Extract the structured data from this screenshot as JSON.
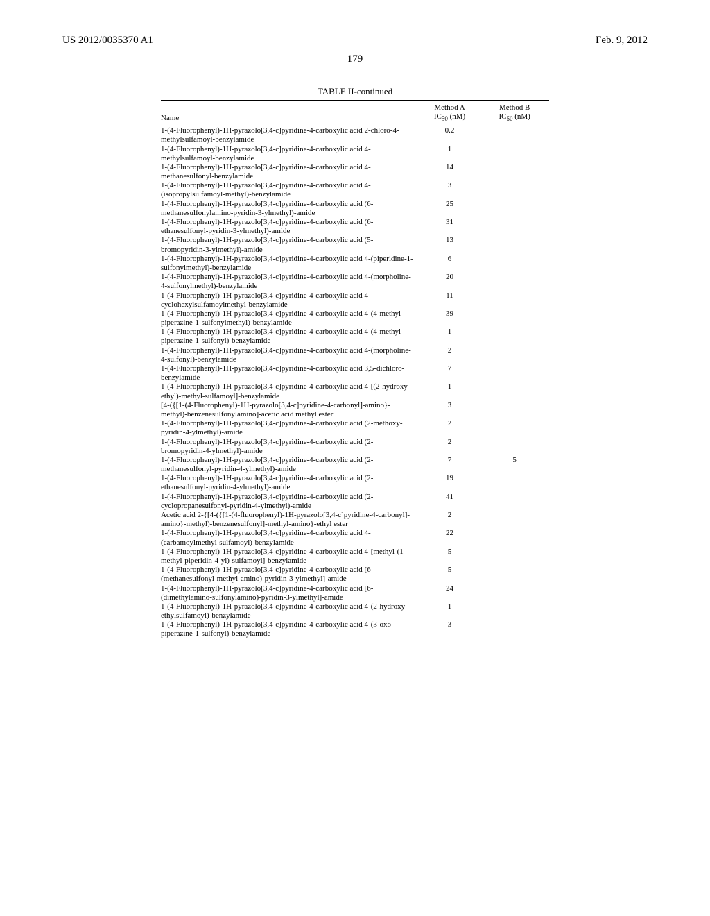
{
  "header": {
    "left": "US 2012/0035370 A1",
    "right": "Feb. 9, 2012"
  },
  "page_number": "179",
  "table": {
    "caption": "TABLE II-continued",
    "columns": {
      "name": "Name",
      "methodA_line1": "Method A",
      "methodA_line2": "IC",
      "methodA_sub": "50",
      "methodA_unit": " (nM)",
      "methodB_line1": "Method B",
      "methodB_line2": "IC",
      "methodB_sub": "50",
      "methodB_unit": " (nM)"
    },
    "rows": [
      {
        "name": "1-(4-Fluorophenyl)-1H-pyrazolo[3,4-c]pyridine-4-carboxylic acid 2-chloro-4-methylsulfamoyl-benzylamide",
        "a": "0.2",
        "b": ""
      },
      {
        "name": "1-(4-Fluorophenyl)-1H-pyrazolo[3,4-c]pyridine-4-carboxylic acid 4-methylsulfamoyl-benzylamide",
        "a": "1",
        "b": ""
      },
      {
        "name": "1-(4-Fluorophenyl)-1H-pyrazolo[3,4-c]pyridine-4-carboxylic acid 4-methanesulfonyl-benzylamide",
        "a": "14",
        "b": ""
      },
      {
        "name": "1-(4-Fluorophenyl)-1H-pyrazolo[3,4-c]pyridine-4-carboxylic acid 4-(isopropylsulfamoyl-methyl)-benzylamide",
        "a": "3",
        "b": ""
      },
      {
        "name": "1-(4-Fluorophenyl)-1H-pyrazolo[3,4-c]pyridine-4-carboxylic acid (6-methanesulfonylamino-pyridin-3-ylmethyl)-amide",
        "a": "25",
        "b": ""
      },
      {
        "name": "1-(4-Fluorophenyl)-1H-pyrazolo[3,4-c]pyridine-4-carboxylic acid (6-ethanesulfonyl-pyridin-3-ylmethyl)-amide",
        "a": "31",
        "b": ""
      },
      {
        "name": "1-(4-Fluorophenyl)-1H-pyrazolo[3,4-c]pyridine-4-carboxylic acid (5-bromopyridin-3-ylmethyl)-amide",
        "a": "13",
        "b": ""
      },
      {
        "name": "1-(4-Fluorophenyl)-1H-pyrazolo[3,4-c]pyridine-4-carboxylic acid 4-(piperidine-1-sulfonylmethyl)-benzylamide",
        "a": "6",
        "b": ""
      },
      {
        "name": "1-(4-Fluorophenyl)-1H-pyrazolo[3,4-c]pyridine-4-carboxylic acid 4-(morpholine-4-sulfonylmethyl)-benzylamide",
        "a": "20",
        "b": ""
      },
      {
        "name": "1-(4-Fluorophenyl)-1H-pyrazolo[3,4-c]pyridine-4-carboxylic acid 4-cyclohexylsulfamoylmethyl-benzylamide",
        "a": "11",
        "b": ""
      },
      {
        "name": "1-(4-Fluorophenyl)-1H-pyrazolo[3,4-c]pyridine-4-carboxylic acid 4-(4-methyl-piperazine-1-sulfonylmethyl)-benzylamide",
        "a": "39",
        "b": ""
      },
      {
        "name": "1-(4-Fluorophenyl)-1H-pyrazolo[3,4-c]pyridine-4-carboxylic acid 4-(4-methyl-piperazine-1-sulfonyl)-benzylamide",
        "a": "1",
        "b": ""
      },
      {
        "name": "1-(4-Fluorophenyl)-1H-pyrazolo[3,4-c]pyridine-4-carboxylic acid 4-(morpholine-4-sulfonyl)-benzylamide",
        "a": "2",
        "b": ""
      },
      {
        "name": "1-(4-Fluorophenyl)-1H-pyrazolo[3,4-c]pyridine-4-carboxylic acid 3,5-dichloro-benzylamide",
        "a": "7",
        "b": ""
      },
      {
        "name": "1-(4-Fluorophenyl)-1H-pyrazolo[3,4-c]pyridine-4-carboxylic acid 4-[(2-hydroxy-ethyl)-methyl-sulfamoyl]-benzylamide",
        "a": "1",
        "b": ""
      },
      {
        "name": "[4-({[1-(4-Fluorophenyl)-1H-pyrazolo[3,4-c]pyridine-4-carbonyl]-amino}-methyl)-benzenesulfonylamino]-acetic acid methyl ester",
        "a": "3",
        "b": ""
      },
      {
        "name": "1-(4-Fluorophenyl)-1H-pyrazolo[3,4-c]pyridine-4-carboxylic acid (2-methoxy-pyridin-4-ylmethyl)-amide",
        "a": "2",
        "b": ""
      },
      {
        "name": "1-(4-Fluorophenyl)-1H-pyrazolo[3,4-c]pyridine-4-carboxylic acid (2-bromopyridin-4-ylmethyl)-amide",
        "a": "2",
        "b": ""
      },
      {
        "name": "1-(4-Fluorophenyl)-1H-pyrazolo[3,4-c]pyridine-4-carboxylic acid (2-methanesulfonyl-pyridin-4-ylmethyl)-amide",
        "a": "7",
        "b": "5"
      },
      {
        "name": "1-(4-Fluorophenyl)-1H-pyrazolo[3,4-c]pyridine-4-carboxylic acid (2-ethanesulfonyl-pyridin-4-ylmethyl)-amide",
        "a": "19",
        "b": ""
      },
      {
        "name": "1-(4-Fluorophenyl)-1H-pyrazolo[3,4-c]pyridine-4-carboxylic acid (2-cyclopropanesulfonyl-pyridin-4-ylmethyl)-amide",
        "a": "41",
        "b": ""
      },
      {
        "name": "Acetic acid 2-{[4-({[1-(4-fluorophenyl)-1H-pyrazolo[3,4-c]pyridine-4-carbonyl]-amino}-methyl)-benzenesulfonyl]-methyl-amino}-ethyl ester",
        "a": "2",
        "b": ""
      },
      {
        "name": "1-(4-Fluorophenyl)-1H-pyrazolo[3,4-c]pyridine-4-carboxylic acid 4-(carbamoylmethyl-sulfamoyl)-benzylamide",
        "a": "22",
        "b": ""
      },
      {
        "name": "1-(4-Fluorophenyl)-1H-pyrazolo[3,4-c]pyridine-4-carboxylic acid 4-[methyl-(1-methyl-piperidin-4-yl)-sulfamoyl]-benzylamide",
        "a": "5",
        "b": ""
      },
      {
        "name": "1-(4-Fluorophenyl)-1H-pyrazolo[3,4-c]pyridine-4-carboxylic acid [6-(methanesulfonyl-methyl-amino)-pyridin-3-ylmethyl]-amide",
        "a": "5",
        "b": ""
      },
      {
        "name": "1-(4-Fluorophenyl)-1H-pyrazolo[3,4-c]pyridine-4-carboxylic acid [6-(dimethylamino-sulfonylamino)-pyridin-3-ylmethyl]-amide",
        "a": "24",
        "b": ""
      },
      {
        "name": "1-(4-Fluorophenyl)-1H-pyrazolo[3,4-c]pyridine-4-carboxylic acid 4-(2-hydroxy-ethylsulfamoyl)-benzylamide",
        "a": "1",
        "b": ""
      },
      {
        "name": "1-(4-Fluorophenyl)-1H-pyrazolo[3,4-c]pyridine-4-carboxylic acid 4-(3-oxo-piperazine-1-sulfonyl)-benzylamide",
        "a": "3",
        "b": ""
      }
    ]
  }
}
